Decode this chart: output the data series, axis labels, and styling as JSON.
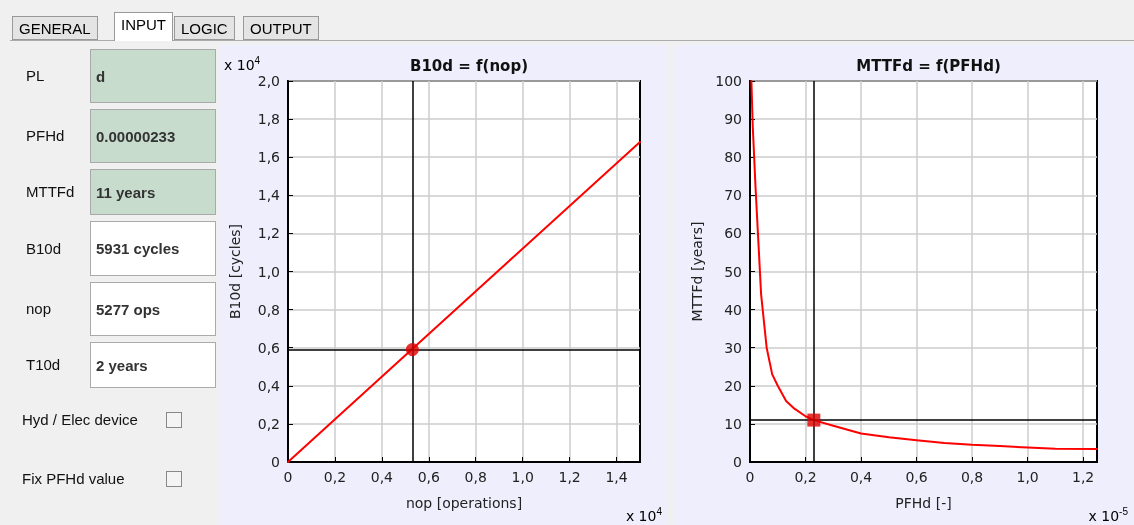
{
  "chart_data": [
    {
      "type": "other",
      "annotations": [
        "GENERAL",
        "INPUT",
        "LOGIC",
        "OUTPUT",
        "PL",
        "d",
        "PFHd",
        "0.00000233",
        "MTTFd",
        "11 years",
        "B10d",
        "5931 cycles",
        "nop",
        "5277 ops",
        "T10d",
        "2 years",
        "Hyd / Elec device",
        "Fix PFHd value"
      ]
    },
    {
      "type": "line",
      "title": "B10d = f(nop)",
      "xlabel": "nop [operations]",
      "ylabel": "B10d [cycles]",
      "annotations": [
        "x 10$^{4}$",
        "x 10$^{4}$"
      ],
      "xlim": [
        0,
        1.5
      ],
      "xticks": [
        0,
        {
          "value": 0.2,
          "label": "0,2"
        },
        {
          "value": 0.4,
          "label": "0,4"
        },
        {
          "value": 0.6,
          "label": "0,6"
        },
        {
          "value": 0.8,
          "label": "0,8"
        },
        {
          "value": 1.0,
          "label": "1,0"
        },
        {
          "value": 1.2,
          "label": "1,2"
        },
        {
          "value": 1.4,
          "label": "1,4"
        }
      ],
      "ylim": [
        0,
        2.0
      ],
      "yticks": [
        0,
        {
          "value": 0.2,
          "label": "0,2"
        },
        {
          "value": 0.4,
          "label": "0,4"
        },
        {
          "value": 0.6,
          "label": "0,6"
        },
        {
          "value": 0.8,
          "label": "0,8"
        },
        {
          "value": 1.0,
          "label": "1,0"
        },
        {
          "value": 1.2,
          "label": "1,2"
        },
        {
          "value": 1.4,
          "label": "1,4"
        },
        {
          "value": 1.6,
          "label": "1,6"
        },
        {
          "value": 1.8,
          "label": "1,8"
        },
        {
          "value": 2.0,
          "label": "2,0"
        }
      ],
      "grid": true,
      "marker": "none",
      "series": [
        {
          "type": "line",
          "color": "#ff0000",
          "x": [
            0,
            1.5
          ],
          "values": [
            0,
            1.68
          ]
        },
        {
          "type": "scatter",
          "color": "#dd0000",
          "marker": "circle",
          "x": [
            0.53
          ],
          "values": [
            0.59
          ]
        }
      ],
      "ref_lines": [
        {
          "axis": "x",
          "value": 0.53,
          "color": "#000000"
        },
        {
          "axis": "y",
          "value": 0.59,
          "color": "#000000"
        }
      ]
    },
    {
      "type": "line",
      "title": "MTTFd = f(PFHd)",
      "xlabel": "PFHd [-]",
      "ylabel": "MTTFd [years]",
      "annotations": [
        "x 10$^{-5}$"
      ],
      "xlim": [
        0,
        1.25
      ],
      "xticks": [
        0,
        {
          "value": 0.2,
          "label": "0,2"
        },
        {
          "value": 0.4,
          "label": "0,4"
        },
        {
          "value": 0.6,
          "label": "0,6"
        },
        {
          "value": 0.8,
          "label": "0,8"
        },
        {
          "value": 1.0,
          "label": "1,0"
        },
        {
          "value": 1.2,
          "label": "1,2"
        }
      ],
      "ylim": [
        0,
        100
      ],
      "yticks": [
        0,
        10,
        20,
        30,
        40,
        50,
        60,
        70,
        80,
        90,
        100
      ],
      "grid": true,
      "marker": "none",
      "series": [
        {
          "type": "line",
          "color": "#ff0000",
          "x": [
            0.005,
            0.01,
            0.02,
            0.03,
            0.04,
            0.06,
            0.08,
            0.1,
            0.13,
            0.16,
            0.2,
            0.23,
            0.3,
            0.4,
            0.5,
            0.6,
            0.7,
            0.8,
            0.9,
            1.0,
            1.1,
            1.25
          ],
          "values": [
            100,
            88,
            72,
            58,
            44,
            30,
            23,
            20,
            16,
            14,
            12,
            11,
            9.5,
            7.5,
            6.5,
            5.7,
            5,
            4.5,
            4.2,
            3.8,
            3.5,
            3.4
          ]
        },
        {
          "type": "scatter",
          "color": "#dd0000",
          "marker": "square",
          "x": [
            0.23
          ],
          "values": [
            11
          ]
        }
      ],
      "ref_lines": [
        {
          "axis": "x",
          "value": 0.23,
          "color": "#000000"
        },
        {
          "axis": "y",
          "value": 11,
          "color": "#000000"
        }
      ]
    }
  ]
}
